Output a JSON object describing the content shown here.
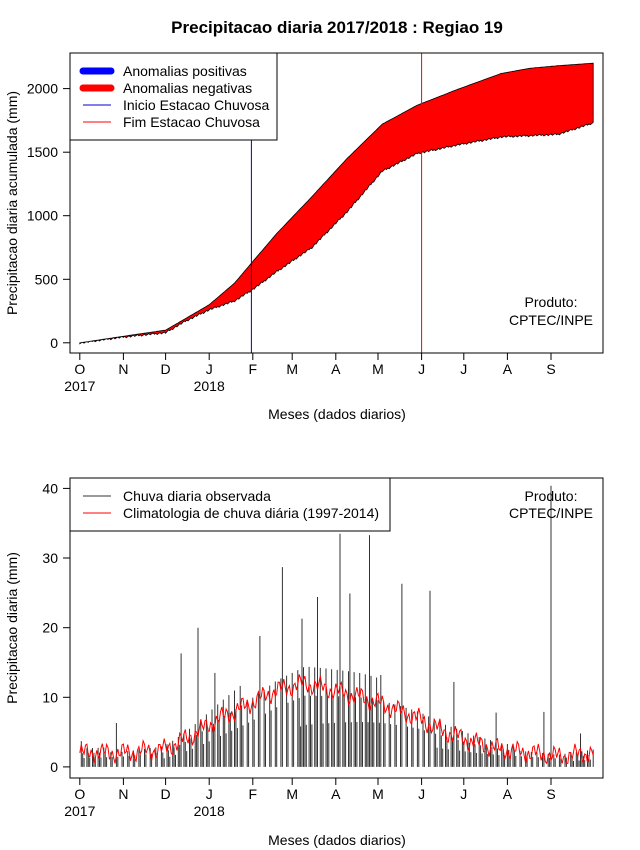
{
  "title": "Precipitacao diaria 2017/2018 : Regiao 19",
  "produto": "Produto:",
  "produto_source": "CPTEC/INPE",
  "month_labels": [
    "O",
    "N",
    "D",
    "J",
    "F",
    "M",
    "A",
    "M",
    "J",
    "J",
    "A",
    "S"
  ],
  "year_labels": [
    "2017",
    "2018"
  ],
  "xlabel": "Meses (dados diarios)",
  "colors": {
    "positive": "#0000ff",
    "negative": "#ff0000",
    "observed": "#333333",
    "climatology": "#ff0000",
    "start": "#0000cc",
    "end": "#ff0000"
  },
  "chart_data": [
    {
      "type": "area",
      "name": "accumulated",
      "ylabel": "Precipitacao diaria acumulada (mm)",
      "yticks": [
        0,
        500,
        1000,
        1500,
        2000
      ],
      "ylim": [
        -80,
        2280
      ],
      "xlim": [
        -7,
        372
      ],
      "days": [
        0,
        30,
        61,
        75,
        92,
        110,
        123,
        140,
        165,
        190,
        215,
        240,
        270,
        290,
        300,
        320,
        340,
        365
      ],
      "climatology": [
        0,
        50,
        100,
        190,
        300,
        470,
        640,
        860,
        1150,
        1450,
        1720,
        1870,
        2000,
        2080,
        2120,
        2160,
        2180,
        2200
      ],
      "observed": [
        0,
        45,
        80,
        170,
        260,
        330,
        420,
        560,
        750,
        1030,
        1350,
        1490,
        1560,
        1600,
        1620,
        1630,
        1640,
        1730
      ],
      "legend": [
        {
          "label": "Anomalias positivas",
          "kind": "thick",
          "color": "#0000ff"
        },
        {
          "label": "Anomalias negativas",
          "kind": "thick",
          "color": "#ff0000"
        },
        {
          "label": "Inicio Estacao Chuvosa",
          "kind": "thin",
          "color": "#0000cc"
        },
        {
          "label": "Fim Estacao Chuvosa",
          "kind": "thin",
          "color": "#ff0000"
        }
      ],
      "season_start_day": 122,
      "season_end_day": 243
    },
    {
      "type": "bar",
      "name": "daily",
      "ylabel": "Precipitacao diaria (mm)",
      "yticks": [
        0,
        10,
        20,
        30,
        40
      ],
      "ylim": [
        -1.6,
        41.5
      ],
      "xlim": [
        -7,
        372
      ],
      "legend": [
        {
          "label": "Chuva diaria observada",
          "kind": "line",
          "color": "#333333"
        },
        {
          "label": "Climatologia de chuva diária (1997-2014)",
          "kind": "line",
          "color": "#ff0000"
        }
      ],
      "climatology_profile": {
        "days": [
          0,
          30,
          60,
          75,
          100,
          120,
          140,
          160,
          180,
          200,
          215,
          240,
          260,
          280,
          300,
          320,
          340,
          365
        ],
        "values": [
          2,
          2,
          2.5,
          4,
          7,
          9,
          11,
          12,
          11,
          10,
          9,
          7,
          5,
          3.5,
          2.5,
          2,
          1.5,
          2
        ]
      },
      "peaks": [
        {
          "day": 1,
          "value": 3.7
        },
        {
          "day": 26,
          "value": 6.3
        },
        {
          "day": 72,
          "value": 16.3
        },
        {
          "day": 84,
          "value": 20
        },
        {
          "day": 96,
          "value": 13.5
        },
        {
          "day": 128,
          "value": 18.8
        },
        {
          "day": 144,
          "value": 28.7
        },
        {
          "day": 158,
          "value": 21.3
        },
        {
          "day": 169,
          "value": 24.4
        },
        {
          "day": 185,
          "value": 33.5
        },
        {
          "day": 192,
          "value": 24.9
        },
        {
          "day": 206,
          "value": 33.3
        },
        {
          "day": 214,
          "value": 13.2
        },
        {
          "day": 229,
          "value": 26.3
        },
        {
          "day": 249,
          "value": 25.3
        },
        {
          "day": 266,
          "value": 12.2
        },
        {
          "day": 296,
          "value": 7.8
        },
        {
          "day": 330,
          "value": 7.9
        },
        {
          "day": 335,
          "value": 40.4
        },
        {
          "day": 356,
          "value": 4.8
        }
      ]
    }
  ]
}
